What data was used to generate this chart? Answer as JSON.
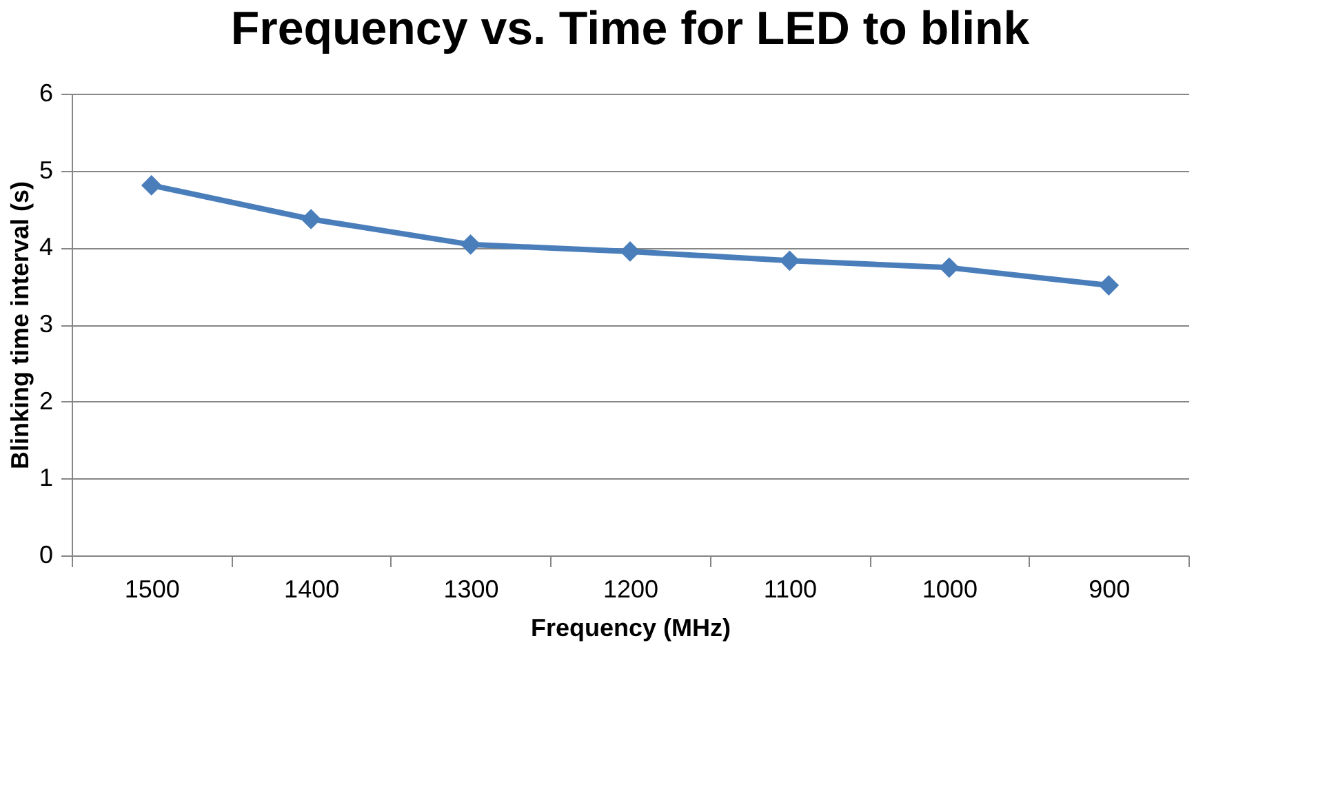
{
  "chart_data": {
    "type": "line",
    "title": "Frequency vs. Time for LED to blink",
    "xlabel": "Frequency (MHz)",
    "ylabel": "Blinking time interval (s)",
    "categories": [
      "1500",
      "1400",
      "1300",
      "1200",
      "1100",
      "1000",
      "900"
    ],
    "series": [
      {
        "color": "#4a7ebb",
        "values": [
          4.81,
          4.37,
          4.04,
          3.95,
          3.83,
          3.74,
          3.51
        ]
      }
    ],
    "ylim": [
      0,
      6
    ],
    "yticks": [
      0,
      1,
      2,
      3,
      4,
      5,
      6
    ],
    "grid": "y",
    "marker": "diamond",
    "line_style": "solid"
  }
}
